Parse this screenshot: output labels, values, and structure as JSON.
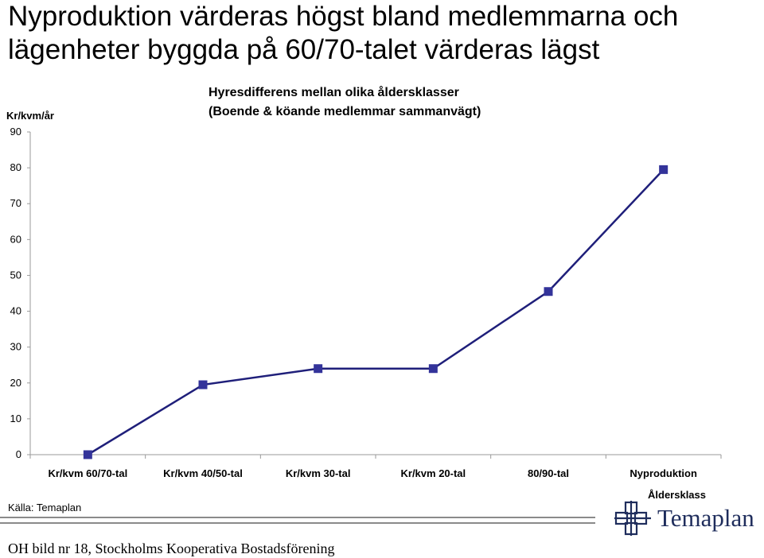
{
  "headline": {
    "line1": "Nyproduktion värderas högst bland medlemmarna och",
    "line2": "lägenheter byggda på 60/70-talet värderas lägst"
  },
  "source": "Källa: Temaplan",
  "footer": "OH bild nr 18, Stockholms Kooperativa Bostadsförening",
  "logo": {
    "text": "Temaplan",
    "icon": "temaplan-logo-icon"
  },
  "chart_data": {
    "type": "line",
    "title": "Hyresdifferens mellan olika åldersklasser",
    "subtitle": "(Boende & köande medlemmar sammanvägt)",
    "ylabel": "Kr/kvm/år",
    "xlabel": "Åldersklass",
    "categories": [
      "Kr/kvm 60/70-tal",
      "Kr/kvm 40/50-tal",
      "Kr/kvm 30-tal",
      "Kr/kvm 20-tal",
      "80/90-tal",
      "Nyproduktion"
    ],
    "series": [
      {
        "values": [
          0,
          19.5,
          24,
          24,
          45.5,
          79.5
        ],
        "color": "#1f1f7a",
        "marker_color": "#33339a"
      }
    ],
    "ylim": [
      0,
      90
    ],
    "yticks": [
      0,
      10,
      20,
      30,
      40,
      50,
      60,
      70,
      80,
      90
    ],
    "grid": false,
    "legend": "none"
  }
}
